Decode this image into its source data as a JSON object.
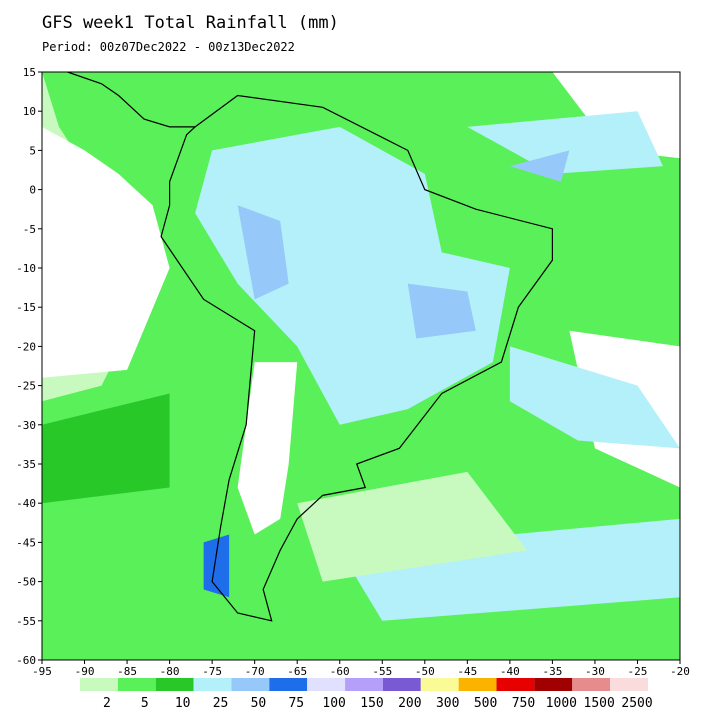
{
  "title": "GFS week1 Total Rainfall (mm)",
  "period": "Period: 00z07Dec2022 - 00z13Dec2022",
  "map": {
    "xlim": [
      -95,
      -20
    ],
    "ylim": [
      -60,
      15
    ],
    "xticks": [
      -95,
      -90,
      -85,
      -80,
      -75,
      -70,
      -65,
      -60,
      -55,
      -50,
      -45,
      -40,
      -35,
      -30,
      -25,
      -20
    ],
    "yticks": [
      15,
      10,
      5,
      0,
      -5,
      -10,
      -15,
      -20,
      -25,
      -30,
      -35,
      -40,
      -45,
      -50,
      -55,
      -60
    ]
  },
  "colorbar": {
    "labels": [
      2,
      5,
      10,
      25,
      50,
      75,
      100,
      150,
      200,
      300,
      500,
      750,
      1000,
      1500,
      2500
    ],
    "colors": [
      "#c8fac0",
      "#5af05a",
      "#28c828",
      "#b4f0fa",
      "#96c8fa",
      "#1e6eeb",
      "#e1e1ff",
      "#b4a0fa",
      "#7a5ad2",
      "#fafa96",
      "#fab400",
      "#e60000",
      "#a00000",
      "#e68c8c",
      "#fadcdc"
    ]
  }
}
